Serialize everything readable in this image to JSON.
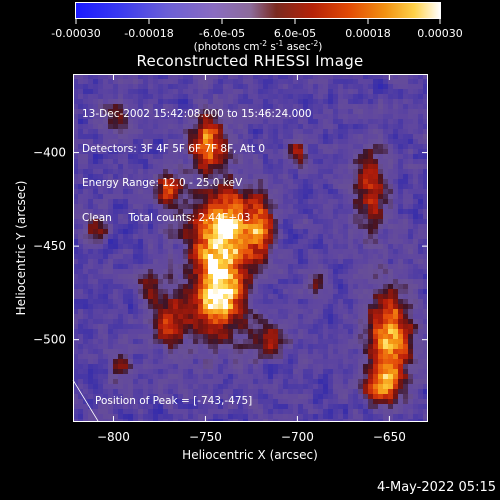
{
  "colorbar": {
    "ticks": [
      "-0.00030",
      "-0.00018",
      "-6.0e-05",
      "6.0e-05",
      "0.00018",
      "0.00030"
    ],
    "units_main": "(photons cm",
    "units_exp1": "-2",
    "units_mid": " s",
    "units_exp2": "-1",
    "units_end": " asec",
    "units_exp3": "-2",
    "units_close": ")"
  },
  "title": "Reconstructed RHESSI Image",
  "annotation": {
    "line1": "13-Dec-2002 15:42:08.000 to 15:46:24.000",
    "line2": "Detectors: 3F 4F 5F 6F 7F 8F, Att 0",
    "line3": "Energy Range: 12.0 - 25.0 keV",
    "line4": "Clean     Total counts: 2.44E+03",
    "peak": "Position of Peak = [-743,-475]"
  },
  "footer_date": "4-May-2022 05:15",
  "chart_data": {
    "type": "heatmap",
    "title": "Reconstructed RHESSI Image",
    "xlabel": "Heliocentric X (arcsec)",
    "ylabel": "Heliocentric Y (arcsec)",
    "xlim": [
      -822,
      -629
    ],
    "ylim": [
      -544,
      -358
    ],
    "x_ticks": [
      -800,
      -750,
      -700,
      -650
    ],
    "y_ticks": [
      -400,
      -450,
      -500
    ],
    "x_tick_labels": [
      "−800",
      "−750",
      "−700",
      "−650"
    ],
    "y_tick_labels": [
      "−400",
      "−450",
      "−500"
    ],
    "colorbar_range": [
      -0.0003,
      0.0003
    ],
    "peak_position": [
      -743,
      -475
    ],
    "sources": [
      {
        "x": -743,
        "y": -475,
        "sx": 10,
        "sy": 16,
        "amp": 1.0
      },
      {
        "x": -740,
        "y": -440,
        "sx": 12,
        "sy": 14,
        "amp": 0.95
      },
      {
        "x": -748,
        "y": -395,
        "sx": 7,
        "sy": 10,
        "amp": 0.75
      },
      {
        "x": -770,
        "y": -420,
        "sx": 5,
        "sy": 6,
        "amp": 0.6
      },
      {
        "x": -770,
        "y": -490,
        "sx": 7,
        "sy": 10,
        "amp": 0.55
      },
      {
        "x": -780,
        "y": -470,
        "sx": 5,
        "sy": 5,
        "amp": 0.45
      },
      {
        "x": -720,
        "y": -440,
        "sx": 5,
        "sy": 12,
        "amp": 0.5
      },
      {
        "x": -715,
        "y": -500,
        "sx": 6,
        "sy": 6,
        "amp": 0.45
      },
      {
        "x": -650,
        "y": -500,
        "sx": 8,
        "sy": 18,
        "amp": 0.85
      },
      {
        "x": -660,
        "y": -420,
        "sx": 6,
        "sy": 15,
        "amp": 0.55
      },
      {
        "x": -655,
        "y": -525,
        "sx": 6,
        "sy": 6,
        "amp": 0.6
      },
      {
        "x": -810,
        "y": -440,
        "sx": 4,
        "sy": 4,
        "amp": 0.45
      },
      {
        "x": -800,
        "y": -380,
        "sx": 5,
        "sy": 5,
        "amp": 0.35
      },
      {
        "x": -700,
        "y": -400,
        "sx": 4,
        "sy": 4,
        "amp": 0.4
      },
      {
        "x": -690,
        "y": -470,
        "sx": 4,
        "sy": 6,
        "amp": 0.35
      },
      {
        "x": -795,
        "y": -515,
        "sx": 5,
        "sy": 5,
        "amp": 0.3
      }
    ]
  }
}
